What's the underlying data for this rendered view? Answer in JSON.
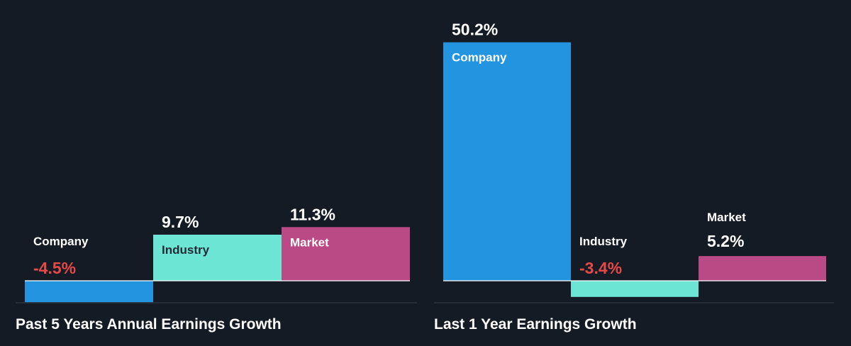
{
  "colors": {
    "background": "#151b24",
    "company": "#2394df",
    "industry": "#6de5d5",
    "market": "#b94a86",
    "positive_text": "#ffffff",
    "negative_text": "#e64a48",
    "label_on_dark": "#ffffff",
    "label_on_light": "#1f2a36"
  },
  "chart_data": [
    {
      "type": "bar",
      "title": "Past 5 Years Annual Earnings Growth",
      "categories": [
        "Company",
        "Industry",
        "Market"
      ],
      "values": [
        -4.5,
        9.7,
        11.3
      ],
      "value_labels": [
        "-4.5%",
        "9.7%",
        "11.3%"
      ],
      "unit": "%",
      "grid": false,
      "legend": "none"
    },
    {
      "type": "bar",
      "title": "Last 1 Year Earnings Growth",
      "categories": [
        "Company",
        "Industry",
        "Market"
      ],
      "values": [
        50.2,
        -3.4,
        5.2
      ],
      "value_labels": [
        "50.2%",
        "-3.4%",
        "5.2%"
      ],
      "unit": "%",
      "grid": false,
      "legend": "none"
    }
  ]
}
